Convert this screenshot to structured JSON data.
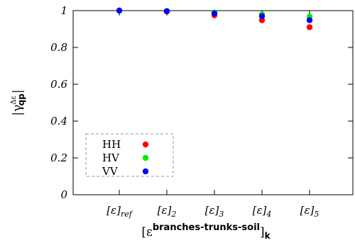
{
  "chart_data": {
    "type": "scatter",
    "categories": [
      {
        "base": "[ε]",
        "sub": "ref"
      },
      {
        "base": "[ε]",
        "sub": "2"
      },
      {
        "base": "[ε]",
        "sub": "3"
      },
      {
        "base": "[ε]",
        "sub": "4"
      },
      {
        "base": "[ε]",
        "sub": "5"
      }
    ],
    "series": [
      {
        "name": "HH",
        "color": "#ff0000",
        "values": [
          1.0,
          0.995,
          0.975,
          0.948,
          0.91
        ]
      },
      {
        "name": "HV",
        "color": "#00ee00",
        "values": [
          1.0,
          0.998,
          0.99,
          0.98,
          0.968
        ]
      },
      {
        "name": "VV",
        "color": "#0000ff",
        "values": [
          1.0,
          0.997,
          0.985,
          0.97,
          0.948
        ]
      }
    ],
    "ylim": [
      0,
      1
    ],
    "yticks": [
      {
        "value": 0,
        "label": "0"
      },
      {
        "value": 0.2,
        "label": "0.2"
      },
      {
        "value": 0.4,
        "label": "0.4"
      },
      {
        "value": 0.6,
        "label": "0.6"
      },
      {
        "value": 0.8,
        "label": "0.8"
      },
      {
        "value": 1,
        "label": "1"
      }
    ],
    "xlabel": {
      "open": "[ε",
      "sup": "branches-trunks-soil",
      "close": "]",
      "sub": "k"
    },
    "ylabel": {
      "open": "|γ",
      "sup": "Δε",
      "sub": "qp",
      "close": "|"
    },
    "legend": {
      "position": "bottom-left",
      "framed": true,
      "style": "dashed"
    },
    "grid": false
  }
}
